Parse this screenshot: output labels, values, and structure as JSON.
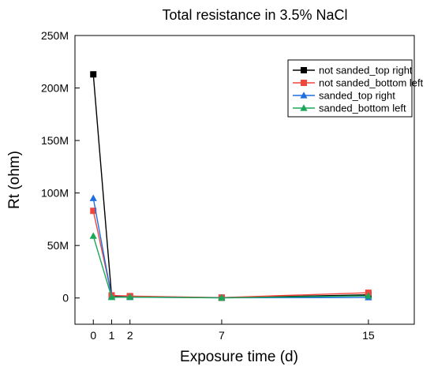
{
  "chart_data": {
    "type": "line",
    "title": "Total resistance in 3.5% NaCl",
    "xlabel": "Exposure time (d)",
    "ylabel": "Rt (ohm)",
    "x": [
      0,
      1,
      2,
      7,
      15
    ],
    "x_ticks": [
      "0",
      "1",
      "2",
      "7",
      "15"
    ],
    "xlim": [
      -1,
      17.5
    ],
    "ylim": [
      -25000000,
      250000000
    ],
    "y_ticks": [
      "0",
      "50M",
      "100M",
      "150M",
      "200M",
      "250M"
    ],
    "y_tick_values": [
      0,
      50000000,
      100000000,
      150000000,
      200000000,
      250000000
    ],
    "grid": false,
    "legend_position": "top-right",
    "series": [
      {
        "name": "not sanded_top right",
        "color": "#000000",
        "marker": "square",
        "values": [
          213000000,
          1500000,
          1200000,
          300000,
          3000000
        ]
      },
      {
        "name": "not sanded_bottom left",
        "color": "#f0463c",
        "marker": "square",
        "values": [
          83000000,
          2500000,
          1800000,
          400000,
          5000000
        ]
      },
      {
        "name": "sanded_top right",
        "color": "#1f6ee0",
        "marker": "triangle",
        "values": [
          95000000,
          1000000,
          800000,
          200000,
          500000
        ]
      },
      {
        "name": "sanded_bottom left",
        "color": "#1aa858",
        "marker": "triangle",
        "values": [
          59000000,
          700000,
          900000,
          150000,
          2000000
        ]
      }
    ]
  }
}
